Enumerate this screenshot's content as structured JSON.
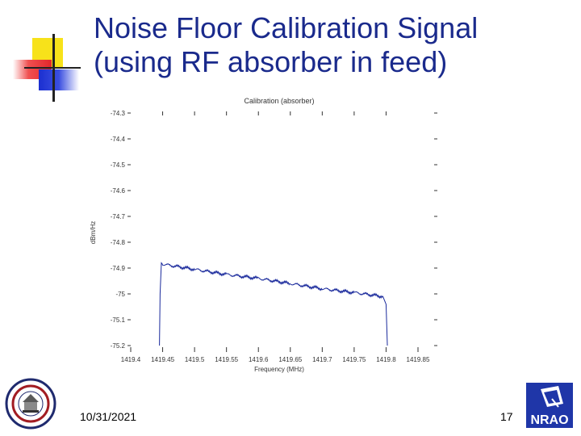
{
  "slide": {
    "title_line1": "Noise Floor Calibration Signal",
    "title_line2": "(using RF absorber in feed)",
    "date": "10/31/2021",
    "page_number": "17",
    "accent_color": "#1a2a8c"
  },
  "logos": {
    "left": "university-seal-icon",
    "right": "nrao-logo-icon",
    "right_text": "NRAO"
  },
  "chart_data": {
    "type": "line",
    "title": "Calibration (absorber)",
    "xlabel": "Frequency (MHz)",
    "ylabel": "dBm/Hz",
    "xlim": [
      1419.4,
      1419.85
    ],
    "ylim": [
      -75.2,
      -74.3
    ],
    "x_ticks": [
      "1419.4",
      "1419.45",
      "1419.5",
      "1419.55",
      "1419.6",
      "1419.65",
      "1419.7",
      "1419.75",
      "1419.8",
      "1419.85"
    ],
    "y_ticks": [
      "-74.3",
      "-74.4",
      "-74.5",
      "-74.6",
      "-74.7",
      "-74.8",
      "-74.9",
      "-75",
      "-75.1",
      "-75.2"
    ],
    "grid": false,
    "line_color": "#1a2a9c",
    "series": [
      {
        "x": [
          1419.445,
          1419.446,
          1419.448,
          1419.45,
          1419.5,
          1419.55,
          1419.6,
          1419.65,
          1419.7,
          1419.75,
          1419.795,
          1419.8,
          1419.801,
          1419.802
        ],
        "y": [
          -75.2,
          -75.0,
          -74.88,
          -74.885,
          -74.905,
          -74.925,
          -74.94,
          -74.96,
          -74.98,
          -74.995,
          -75.01,
          -75.04,
          -75.12,
          -75.2
        ]
      }
    ]
  }
}
